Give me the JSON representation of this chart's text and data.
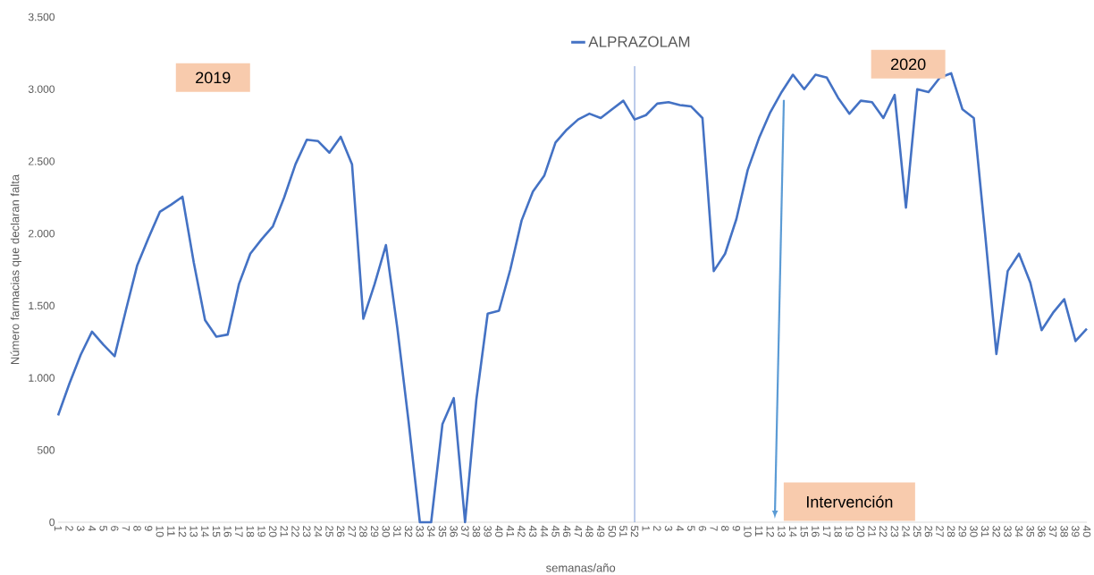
{
  "chart_data": {
    "type": "line",
    "xlabel": "semanas/año",
    "ylabel": "Número farmacias que declaran falta",
    "categories": [
      "1",
      "2",
      "3",
      "4",
      "5",
      "6",
      "7",
      "8",
      "9",
      "10",
      "11",
      "12",
      "13",
      "14",
      "15",
      "16",
      "17",
      "18",
      "19",
      "20",
      "21",
      "22",
      "23",
      "24",
      "25",
      "26",
      "27",
      "28",
      "29",
      "30",
      "31",
      "32",
      "33",
      "34",
      "35",
      "36",
      "37",
      "38",
      "39",
      "40",
      "41",
      "42",
      "43",
      "44",
      "45",
      "46",
      "47",
      "48",
      "49",
      "50",
      "51",
      "52",
      "1",
      "2",
      "3",
      "4",
      "5",
      "6",
      "7",
      "8",
      "9",
      "10",
      "11",
      "12",
      "13",
      "14",
      "15",
      "16",
      "17",
      "18",
      "19",
      "20",
      "21",
      "22",
      "23",
      "24",
      "25",
      "26",
      "27",
      "28",
      "29",
      "30",
      "31",
      "32",
      "33",
      "34",
      "35",
      "36",
      "37",
      "38",
      "39",
      "40"
    ],
    "series": [
      {
        "name": "ALPRAZOLAM",
        "color": "#4472c4",
        "values": [
          740,
          960,
          1160,
          1320,
          1230,
          1150,
          1470,
          1780,
          1970,
          2150,
          2200,
          2255,
          1800,
          1400,
          1285,
          1300,
          1650,
          1860,
          1960,
          2050,
          2250,
          2480,
          2650,
          2640,
          2560,
          2670,
          2480,
          1410,
          1650,
          1920,
          1350,
          700,
          0,
          0,
          680,
          860,
          0,
          850,
          1445,
          1465,
          1750,
          2090,
          2290,
          2400,
          2630,
          2720,
          2790,
          2830,
          2800,
          2860,
          2920,
          2790,
          2820,
          2900,
          2910,
          2890,
          2880,
          2800,
          1740,
          1860,
          2100,
          2440,
          2660,
          2840,
          2980,
          3100,
          3000,
          3100,
          3080,
          2940,
          2830,
          2920,
          2910,
          2800,
          2960,
          2180,
          3000,
          2980,
          3080,
          3110,
          2860,
          2800,
          2000,
          1165,
          1740,
          1860,
          1660,
          1330,
          1450,
          1545,
          1255,
          1340
        ]
      }
    ],
    "ylim": [
      0,
      3500
    ],
    "yticks": [
      0,
      500,
      {
        "value": 1000,
        "label": "1.000"
      },
      {
        "value": 1500,
        "label": "1.500"
      },
      {
        "value": 2000,
        "label": "2.000"
      },
      {
        "value": 2500,
        "label": "2.500"
      },
      {
        "value": 3000,
        "label": "3.000"
      },
      {
        "value": 3500,
        "label": "3.500"
      }
    ],
    "ref_lines": [
      {
        "axis": "x",
        "value": "52",
        "color": "#8faadc"
      }
    ],
    "annotations": [
      "2019",
      "2020",
      "Intervención"
    ],
    "legend": "top",
    "marker": "none",
    "line_style": "solid"
  }
}
